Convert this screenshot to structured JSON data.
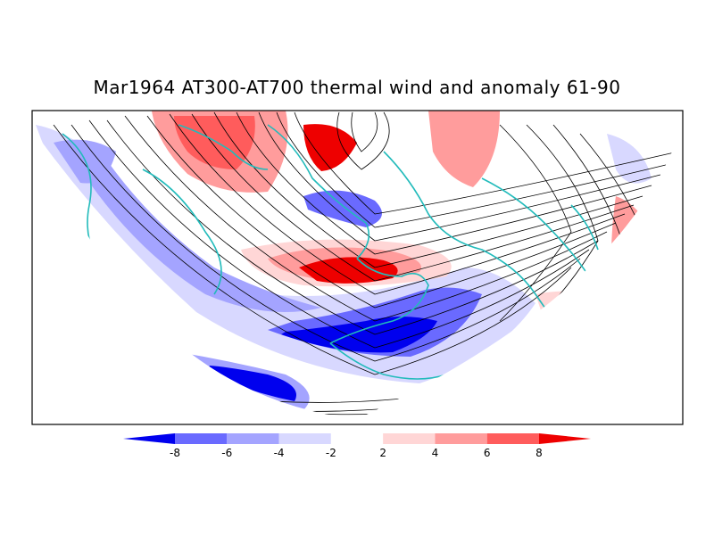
{
  "title": "Mar1964 AT300-AT700 thermal wind and anomaly 61-90",
  "colorbar": {
    "labels": [
      "-8",
      "-6",
      "-4",
      "-2",
      "2",
      "4",
      "6",
      "8"
    ],
    "colors": [
      "#0000ee",
      "#6a6aff",
      "#a4a4ff",
      "#d8d8ff",
      "#ffffff",
      "#ffd6d6",
      "#ff9c9c",
      "#ff5c5c",
      "#ee0000"
    ]
  },
  "map": {
    "projection": "northern-hemisphere polar section",
    "fields": [
      "thermal-wind-streamlines",
      "temperature-anomaly",
      "coastlines"
    ],
    "coastline_color": "#22bbbb",
    "streamline_color": "#000000"
  }
}
